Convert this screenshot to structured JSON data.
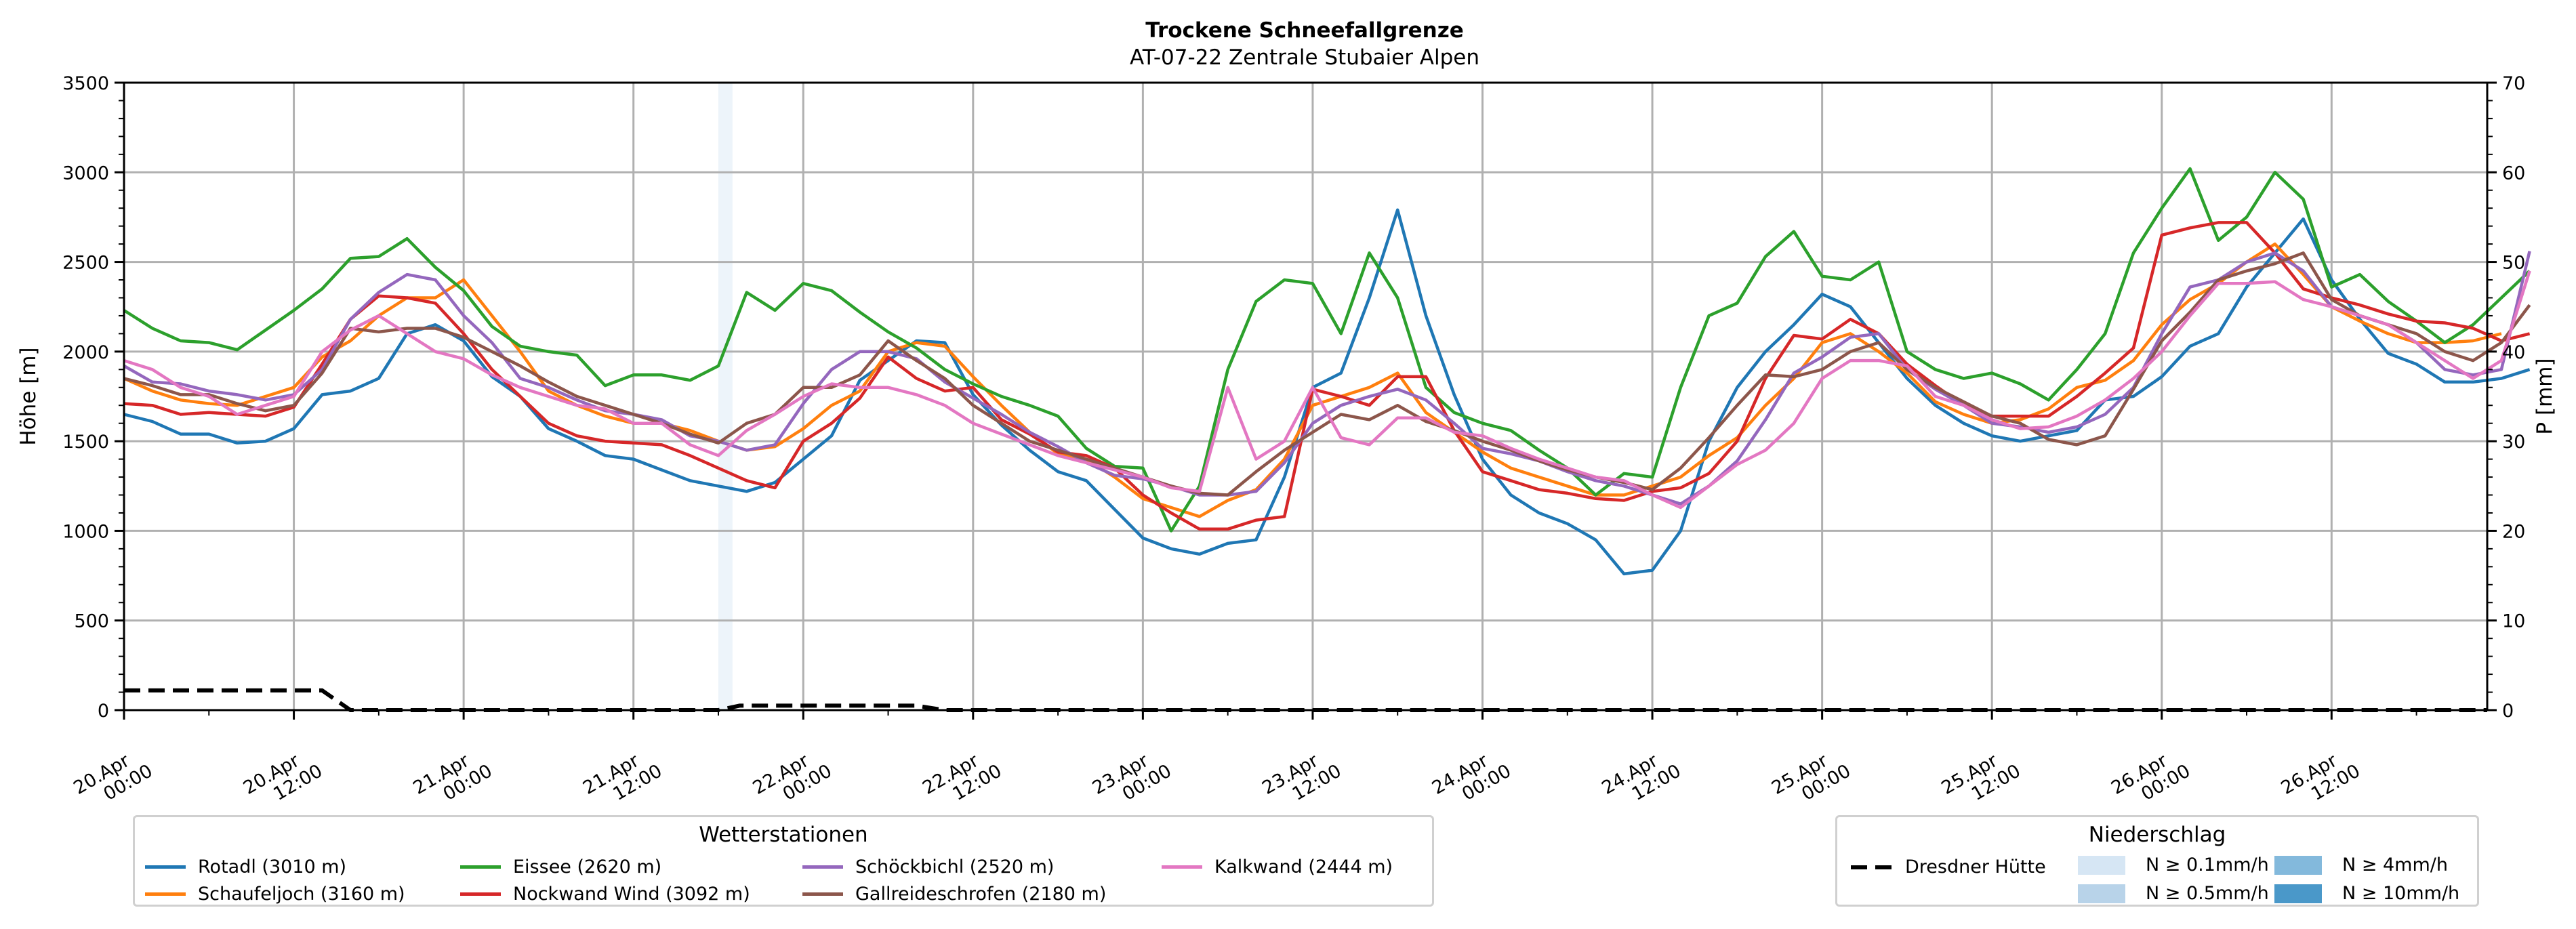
{
  "chart_data": {
    "type": "line",
    "title": "Trockene Schneefallgrenze",
    "subtitle": "AT-07-22 Zentrale Stubaier Alpen",
    "ylabel": "Höhe [m]",
    "y2label": "P [mm]",
    "ylim": [
      0,
      3500
    ],
    "y2lim": [
      0,
      70
    ],
    "yticks": [
      "0",
      "500",
      "1000",
      "1500",
      "2000",
      "2500",
      "3000",
      "3500"
    ],
    "y2ticks": [
      "0",
      "10",
      "20",
      "30",
      "40",
      "50",
      "60",
      "70"
    ],
    "x_unit": "hours since 20.Apr 00:00",
    "xlim": [
      0,
      167
    ],
    "xticks": [
      {
        "h": 0,
        "l1": "20.Apr",
        "l2": "00:00"
      },
      {
        "h": 12,
        "l1": "20.Apr",
        "l2": "12:00"
      },
      {
        "h": 24,
        "l1": "21.Apr",
        "l2": "00:00"
      },
      {
        "h": 36,
        "l1": "21.Apr",
        "l2": "12:00"
      },
      {
        "h": 48,
        "l1": "22.Apr",
        "l2": "00:00"
      },
      {
        "h": 60,
        "l1": "22.Apr",
        "l2": "12:00"
      },
      {
        "h": 72,
        "l1": "23.Apr",
        "l2": "00:00"
      },
      {
        "h": 84,
        "l1": "23.Apr",
        "l2": "12:00"
      },
      {
        "h": 96,
        "l1": "24.Apr",
        "l2": "00:00"
      },
      {
        "h": 108,
        "l1": "24.Apr",
        "l2": "12:00"
      },
      {
        "h": 120,
        "l1": "25.Apr",
        "l2": "00:00"
      },
      {
        "h": 132,
        "l1": "25.Apr",
        "l2": "12:00"
      },
      {
        "h": 144,
        "l1": "26.Apr",
        "l2": "00:00"
      },
      {
        "h": 156,
        "l1": "26.Apr",
        "l2": "12:00"
      }
    ],
    "grid": true,
    "x_step_hours": 2,
    "series": [
      {
        "name": "Rotadl (3010 m)",
        "color": "#1f77b4",
        "values": [
          1650,
          1610,
          1540,
          1540,
          1490,
          1500,
          1570,
          1760,
          1780,
          1850,
          2100,
          2150,
          2060,
          1860,
          1750,
          1570,
          1500,
          1420,
          1400,
          1340,
          1280,
          1250,
          1220,
          1270,
          1400,
          1530,
          1840,
          1950,
          2060,
          2050,
          1760,
          1590,
          1450,
          1330,
          1280,
          1120,
          960,
          900,
          870,
          930,
          950,
          1300,
          1800,
          1880,
          2300,
          2790,
          2200,
          1760,
          1400,
          1200,
          1100,
          1040,
          950,
          760,
          780,
          1000,
          1500,
          1800,
          2000,
          2150,
          2320,
          2250,
          2050,
          1850,
          1700,
          1600,
          1530,
          1500,
          1530,
          1560,
          1730,
          1750,
          1860,
          2030,
          2100,
          2360,
          2550,
          2740,
          2400,
          2180,
          1990,
          1930,
          1830,
          1830,
          1850,
          1900
        ]
      },
      {
        "name": "Schaufeljoch (3160 m)",
        "color": "#ff7f0e",
        "values": [
          1850,
          1780,
          1730,
          1710,
          1700,
          1750,
          1800,
          1970,
          2060,
          2200,
          2300,
          2300,
          2400,
          2200,
          2000,
          1780,
          1700,
          1640,
          1600,
          1600,
          1560,
          1500,
          1450,
          1470,
          1570,
          1700,
          1780,
          2000,
          2050,
          2030,
          1860,
          1700,
          1550,
          1430,
          1400,
          1300,
          1180,
          1130,
          1080,
          1170,
          1230,
          1400,
          1700,
          1750,
          1800,
          1880,
          1660,
          1550,
          1440,
          1350,
          1300,
          1250,
          1200,
          1200,
          1250,
          1300,
          1420,
          1520,
          1700,
          1850,
          2050,
          2100,
          2000,
          1880,
          1720,
          1650,
          1600,
          1620,
          1680,
          1800,
          1840,
          1950,
          2150,
          2290,
          2380,
          2500,
          2600,
          2430,
          2250,
          2170,
          2100,
          2050,
          2050,
          2060,
          2100
        ]
      },
      {
        "name": "Eissee (2620 m)",
        "color": "#2ca02c",
        "values": [
          2230,
          2130,
          2060,
          2050,
          2010,
          2120,
          2230,
          2350,
          2520,
          2530,
          2630,
          2470,
          2340,
          2140,
          2030,
          2000,
          1980,
          1810,
          1870,
          1870,
          1840,
          1920,
          2330,
          2230,
          2380,
          2340,
          2220,
          2110,
          2020,
          1900,
          1820,
          1750,
          1700,
          1640,
          1460,
          1360,
          1350,
          1000,
          1250,
          1900,
          2280,
          2400,
          2380,
          2100,
          2550,
          2300,
          1800,
          1660,
          1600,
          1560,
          1450,
          1350,
          1200,
          1320,
          1300,
          1800,
          2200,
          2270,
          2530,
          2670,
          2420,
          2400,
          2500,
          2000,
          1900,
          1850,
          1880,
          1820,
          1730,
          1900,
          2100,
          2550,
          2800,
          3020,
          2620,
          2750,
          3000,
          2850,
          2360,
          2430,
          2280,
          2170,
          2050,
          2150,
          2300,
          2450
        ]
      },
      {
        "name": "Nockwand Wind (3092 m)",
        "color": "#d62728",
        "values": [
          1710,
          1700,
          1650,
          1660,
          1650,
          1640,
          1690,
          1930,
          2180,
          2310,
          2300,
          2270,
          2100,
          1900,
          1750,
          1600,
          1530,
          1500,
          1490,
          1480,
          1420,
          1350,
          1280,
          1240,
          1500,
          1600,
          1740,
          1970,
          1850,
          1780,
          1800,
          1620,
          1540,
          1440,
          1420,
          1350,
          1200,
          1100,
          1010,
          1010,
          1060,
          1080,
          1790,
          1750,
          1700,
          1860,
          1860,
          1560,
          1330,
          1280,
          1230,
          1210,
          1180,
          1170,
          1220,
          1240,
          1320,
          1500,
          1850,
          2090,
          2070,
          2180,
          2100,
          1930,
          1810,
          1700,
          1640,
          1640,
          1640,
          1750,
          1880,
          2020,
          2650,
          2690,
          2720,
          2720,
          2550,
          2350,
          2300,
          2260,
          2210,
          2170,
          2160,
          2130,
          2060,
          2100
        ]
      },
      {
        "name": "Schöckbichl (2520 m)",
        "color": "#9467bd",
        "values": [
          1920,
          1830,
          1820,
          1780,
          1760,
          1730,
          1760,
          1900,
          2180,
          2330,
          2430,
          2400,
          2200,
          2050,
          1850,
          1800,
          1730,
          1670,
          1650,
          1620,
          1530,
          1500,
          1450,
          1480,
          1710,
          1900,
          2000,
          2000,
          1960,
          1830,
          1740,
          1650,
          1550,
          1470,
          1380,
          1310,
          1290,
          1250,
          1200,
          1200,
          1220,
          1380,
          1600,
          1700,
          1750,
          1790,
          1730,
          1600,
          1460,
          1430,
          1390,
          1330,
          1280,
          1250,
          1200,
          1150,
          1250,
          1390,
          1620,
          1880,
          1970,
          2080,
          2100,
          1900,
          1790,
          1700,
          1600,
          1580,
          1550,
          1580,
          1650,
          1800,
          2100,
          2360,
          2400,
          2500,
          2550,
          2450,
          2250,
          2200,
          2150,
          2050,
          1900,
          1870,
          1900,
          2560
        ]
      },
      {
        "name": "Gallreideschrofen (2180 m)",
        "color": "#8c564b",
        "values": [
          1850,
          1810,
          1760,
          1760,
          1710,
          1670,
          1700,
          1880,
          2130,
          2110,
          2130,
          2130,
          2080,
          2000,
          1920,
          1830,
          1750,
          1700,
          1650,
          1600,
          1540,
          1490,
          1600,
          1650,
          1800,
          1800,
          1870,
          2060,
          1950,
          1850,
          1700,
          1600,
          1500,
          1450,
          1400,
          1350,
          1300,
          1250,
          1210,
          1200,
          1330,
          1450,
          1550,
          1650,
          1620,
          1700,
          1610,
          1560,
          1500,
          1450,
          1390,
          1340,
          1300,
          1270,
          1230,
          1350,
          1520,
          1700,
          1870,
          1860,
          1900,
          2000,
          2050,
          1900,
          1800,
          1720,
          1640,
          1600,
          1510,
          1480,
          1530,
          1790,
          2060,
          2220,
          2400,
          2450,
          2490,
          2550,
          2290,
          2200,
          2150,
          2100,
          2000,
          1950,
          2050,
          2260
        ]
      },
      {
        "name": "Kalkwand (2444 m)",
        "color": "#e377c2",
        "values": [
          1950,
          1900,
          1800,
          1750,
          1650,
          1700,
          1750,
          2000,
          2120,
          2200,
          2100,
          2000,
          1960,
          1870,
          1800,
          1750,
          1700,
          1680,
          1600,
          1600,
          1480,
          1420,
          1560,
          1650,
          1750,
          1820,
          1800,
          1800,
          1760,
          1700,
          1600,
          1540,
          1480,
          1420,
          1380,
          1340,
          1300,
          1240,
          1220,
          1800,
          1400,
          1500,
          1800,
          1520,
          1480,
          1630,
          1630,
          1550,
          1530,
          1460,
          1400,
          1350,
          1300,
          1280,
          1200,
          1130,
          1250,
          1370,
          1450,
          1600,
          1850,
          1950,
          1950,
          1920,
          1750,
          1700,
          1620,
          1570,
          1580,
          1640,
          1730,
          1850,
          2000,
          2200,
          2380,
          2380,
          2390,
          2290,
          2250,
          2200,
          2150,
          2050,
          1950,
          1850,
          1950,
          2450
        ]
      }
    ],
    "precip_series": {
      "name": "Dresdner Hütte",
      "color": "#000000",
      "unit": "mm",
      "points": [
        [
          0,
          2.2
        ],
        [
          14,
          2.2
        ],
        [
          16,
          0
        ],
        [
          42,
          0
        ],
        [
          43.5,
          0.5
        ],
        [
          56,
          0.5
        ],
        [
          58,
          0
        ],
        [
          167,
          0
        ]
      ]
    },
    "precip_bands": [
      {
        "start_h": 42,
        "end_h": 43,
        "level": "N ≥ 0.1mm/h"
      }
    ],
    "legend_stations": {
      "title": "Wetterstationen",
      "placement": "bottom-left"
    },
    "legend_precip": {
      "title": "Niederschlag",
      "placement": "bottom-right",
      "line_label": "Dresdner Hütte",
      "classes": [
        {
          "label": "N ≥ 0.1mm/h",
          "color": "#d6e6f4"
        },
        {
          "label": "N ≥ 0.5mm/h",
          "color": "#b8d3e9"
        },
        {
          "label": "N ≥ 4mm/h",
          "color": "#83b9dc"
        },
        {
          "label": "N ≥ 10mm/h",
          "color": "#4a98c9"
        }
      ]
    }
  }
}
